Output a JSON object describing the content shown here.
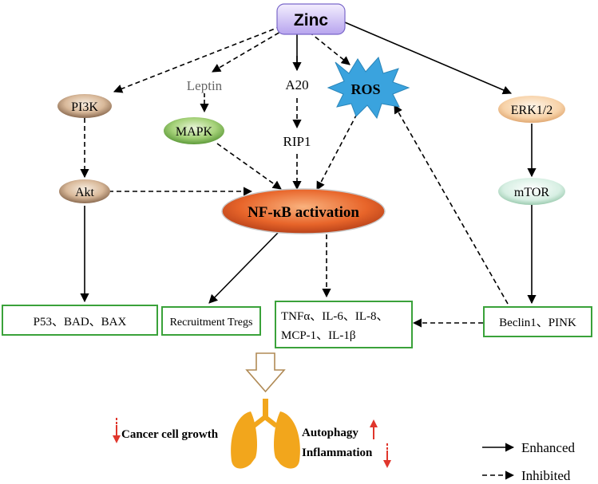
{
  "nodes": {
    "zinc": "Zinc",
    "pi3k": "PI3K",
    "leptin": "Leptin",
    "a20": "A20",
    "ros": "ROS",
    "erk": "ERK1/2",
    "mapk": "MAPK",
    "rip1": "RIP1",
    "akt": "Akt",
    "mtor": "mTOR",
    "nfkb": "NF-κB activation",
    "p53": "P53、BAD、BAX",
    "tregs": "Recruitment Tregs",
    "cytokines_line1": "TNFα、IL-6、IL-8、",
    "cytokines_line2": "MCP-1、IL-1β",
    "beclin": "Beclin1、PINK"
  },
  "outcomes": {
    "cancer": "Cancer cell growth",
    "autophagy": "Autophagy",
    "inflammation": "Inflammation"
  },
  "legend": {
    "enhanced": "Enhanced",
    "inhibited": "Inhibited"
  },
  "colors": {
    "box_border": "#3aa23a",
    "down_arrow": "#e0362c",
    "up_arrow": "#e0362c",
    "lung": "#f2a61c",
    "ros_fill": "#3aa3de",
    "nfkb_fill": "#e8652a",
    "zinc_fill": "#c9b8f0"
  }
}
